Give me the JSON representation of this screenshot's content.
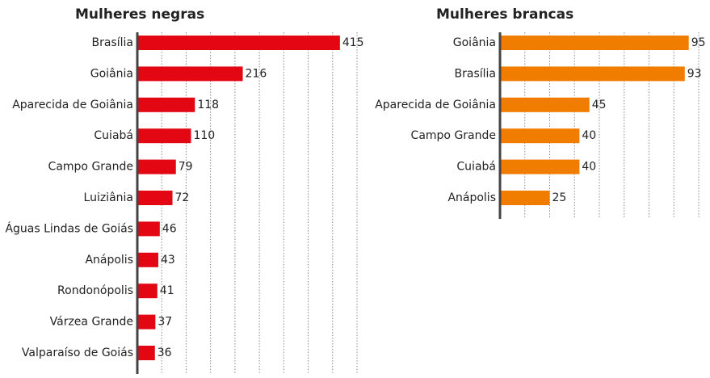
{
  "chart_data": [
    {
      "type": "barh",
      "title": "Mulheres negras",
      "categories": [
        "Brasília",
        "Goiânia",
        "Aparecida de Goiânia",
        "Cuiabá",
        "Campo Grande",
        "Luiziânia",
        "Águas Lindas de Goiás",
        "Anápolis",
        "Rondonópolis",
        "Várzea Grande",
        "Valparaíso de Goiás"
      ],
      "values": [
        415,
        216,
        118,
        110,
        79,
        72,
        46,
        43,
        41,
        37,
        36
      ],
      "color": "#e30613",
      "xlim": [
        0,
        450
      ],
      "xticks": [
        0,
        50,
        100,
        150,
        200,
        250,
        300,
        350,
        400,
        450
      ],
      "grid": true
    },
    {
      "type": "barh",
      "title": "Mulheres brancas",
      "categories": [
        "Goiânia",
        "Brasília",
        "Aparecida de Goiânia",
        "Campo Grande",
        "Cuiabá",
        "Anápolis"
      ],
      "values": [
        95,
        93,
        45,
        40,
        40,
        25
      ],
      "color": "#f07d00",
      "xlim": [
        0,
        100
      ],
      "xticks": [
        0,
        12.5,
        25,
        37.5,
        50,
        62.5,
        75,
        87.5,
        100
      ],
      "grid": true
    }
  ]
}
